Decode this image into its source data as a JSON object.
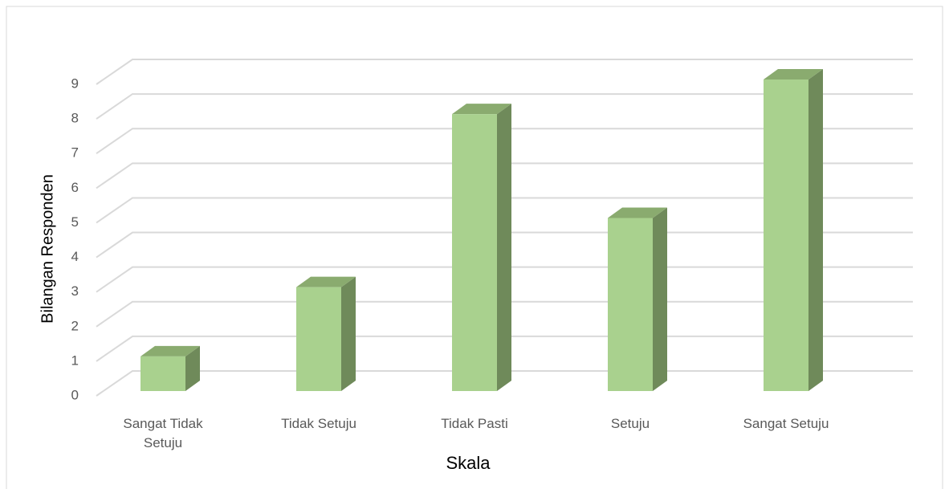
{
  "chart_data": {
    "type": "bar3d",
    "categories": [
      "Sangat Tidak Setuju",
      "Tidak Setuju",
      "Tidak Pasti",
      "Setuju",
      "Sangat Setuju"
    ],
    "values": [
      1,
      3,
      8,
      5,
      9
    ],
    "color": "#a9d18e",
    "ylim": [
      0,
      9
    ],
    "yticks": [
      0,
      1,
      2,
      3,
      4,
      5,
      6,
      7,
      8,
      9
    ],
    "grid": true,
    "xlabel": "Skala",
    "ylabel": "Bilangan Responden"
  }
}
